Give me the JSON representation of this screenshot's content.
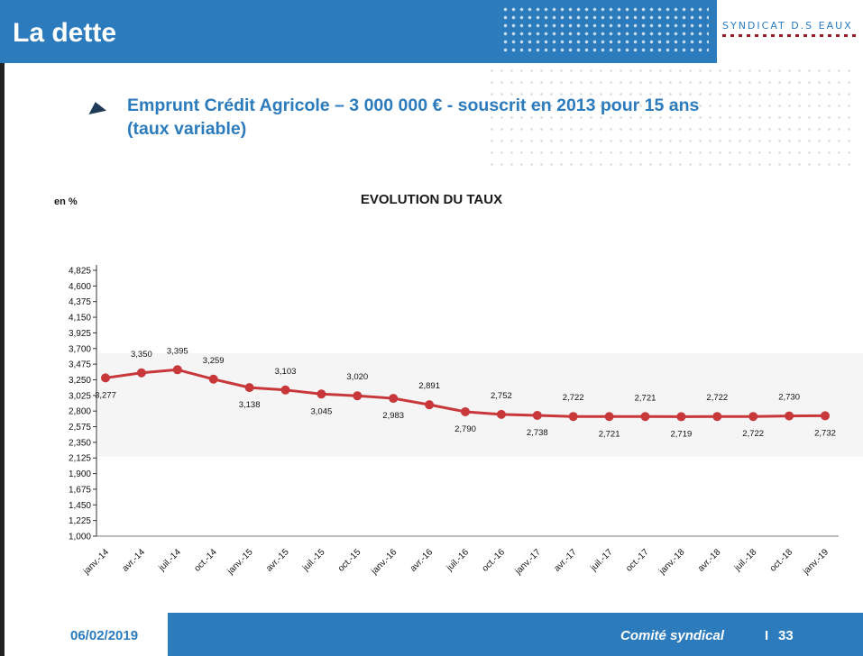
{
  "header": {
    "title": "La dette",
    "logo_text": "SYNDICAT D.S EAUX"
  },
  "subtitle": {
    "line1": "Emprunt Crédit Agricole – 3 000 000 € - souscrit en 2013 pour 15 ans",
    "line2": "(taux variable)"
  },
  "chart_data": {
    "type": "line",
    "title": "EVOLUTION DU TAUX",
    "unit_label": "en %",
    "ylim": [
      1.0,
      4.825
    ],
    "yticks": [
      "4,825",
      "4,600",
      "4,375",
      "4,150",
      "3,925",
      "3,700",
      "3,475",
      "3,250",
      "3,025",
      "2,800",
      "2,575",
      "2,350",
      "2,125",
      "1,900",
      "1,675",
      "1,450",
      "1,225",
      "1,000"
    ],
    "categories": [
      "janv.-14",
      "avr.-14",
      "juil.-14",
      "oct.-14",
      "janv.-15",
      "avr.-15",
      "juil.-15",
      "oct.-15",
      "janv.-16",
      "avr.-16",
      "juil.-16",
      "oct.-16",
      "janv.-17",
      "avr.-17",
      "juil.-17",
      "oct.-17",
      "janv.-18",
      "avr.-18",
      "juil.-18",
      "oct.-18",
      "janv.-19"
    ],
    "series": [
      {
        "values": [
          3.277,
          3.35,
          3.395,
          3.259,
          3.138,
          3.103,
          3.045,
          3.02,
          2.983,
          2.891,
          2.79,
          2.752,
          2.738,
          2.722,
          2.721,
          2.721,
          2.719,
          2.722,
          2.722,
          2.73,
          2.732
        ],
        "labels": [
          "3,277",
          "3,350",
          "3,395",
          "3,259",
          "3,138",
          "3,103",
          "3,045",
          "3,020",
          "2,983",
          "2,891",
          "2,790",
          "2,752",
          "2,738",
          "2,722",
          "2,721",
          "2,721",
          "2,719",
          "2,722",
          "2,722",
          "2,730",
          "2,732"
        ]
      }
    ],
    "colors": {
      "line": "#c8383b",
      "marker": "#c8383b",
      "band": "#ececec"
    },
    "grid": false
  },
  "footer": {
    "date": "06/02/2019",
    "label": "Comité syndical",
    "separator": "I",
    "page": "33"
  }
}
